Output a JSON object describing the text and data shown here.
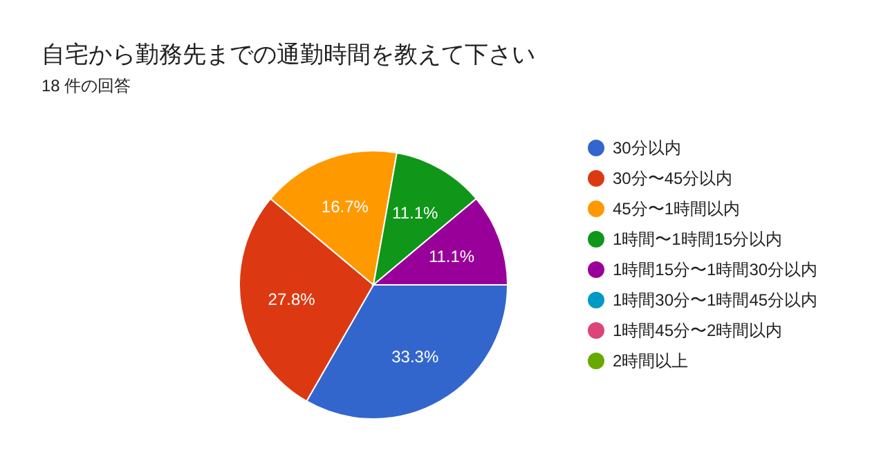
{
  "chart_data": {
    "type": "pie",
    "title": "自宅から勤務先までの通勤時間を教えて下さい",
    "subtitle": "18 件の回答",
    "categories": [
      "30分以内",
      "30分〜45分以内",
      "45分〜1時間以内",
      "1時間〜1時間15分以内",
      "1時間15分〜1時間30分以内",
      "1時間30分〜1時間45分以内",
      "1時間45分〜2時間以内",
      "2時間以上"
    ],
    "values": [
      33.3,
      27.8,
      16.7,
      11.1,
      11.1,
      0,
      0,
      0
    ],
    "colors": [
      "#3366cc",
      "#dc3912",
      "#ff9900",
      "#109618",
      "#990099",
      "#0099c6",
      "#dd4477",
      "#66aa00"
    ],
    "value_labels": [
      "33.3%",
      "27.8%",
      "16.7%",
      "11.1%",
      "11.1%",
      null,
      null,
      null
    ],
    "legend": "right"
  }
}
